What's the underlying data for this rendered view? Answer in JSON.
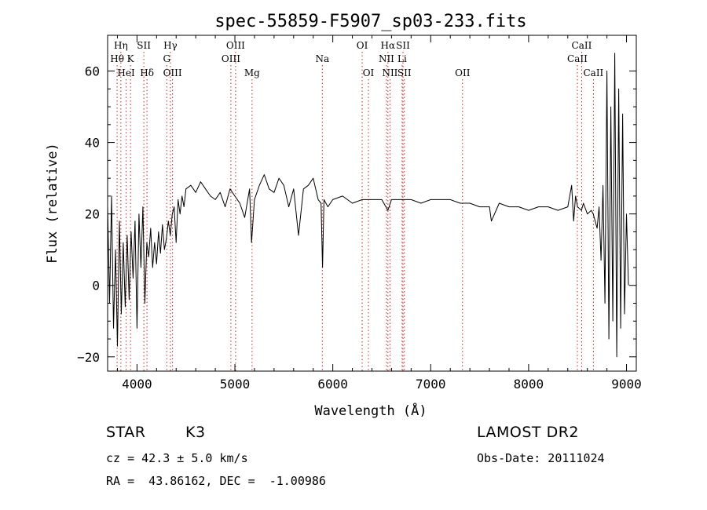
{
  "chart_data": {
    "type": "line",
    "title": "spec-55859-F5907_sp03-233.fits",
    "xlabel": "Wavelength (Å)",
    "ylabel": "Flux (relative)",
    "xlim": [
      3700,
      9100
    ],
    "ylim": [
      -24,
      70
    ],
    "x_ticks": [
      4000,
      5000,
      6000,
      7000,
      8000,
      9000
    ],
    "y_ticks": [
      -20,
      0,
      20,
      40,
      60
    ],
    "grid": false,
    "line_color": "#000000",
    "marker_color": "#cc2222",
    "series": [
      {
        "x": [
          3700,
          3720,
          3740,
          3760,
          3780,
          3800,
          3820,
          3840,
          3860,
          3880,
          3900,
          3920,
          3940,
          3960,
          3980,
          4000,
          4020,
          4040,
          4060,
          4080,
          4100,
          4120,
          4140,
          4160,
          4180,
          4200,
          4220,
          4240,
          4260,
          4280,
          4300,
          4320,
          4340,
          4360,
          4380,
          4400,
          4420,
          4440,
          4460,
          4480,
          4500,
          4550,
          4600,
          4650,
          4700,
          4750,
          4800,
          4850,
          4900,
          4950,
          5000,
          5050,
          5100,
          5150,
          5170,
          5200,
          5250,
          5300,
          5350,
          5400,
          5450,
          5500,
          5550,
          5600,
          5650,
          5700,
          5750,
          5800,
          5850,
          5880,
          5895,
          5910,
          5950,
          6000,
          6100,
          6200,
          6300,
          6400,
          6500,
          6563,
          6600,
          6700,
          6800,
          6900,
          7000,
          7100,
          7200,
          7300,
          7400,
          7500,
          7600,
          7620,
          7700,
          7800,
          7900,
          8000,
          8100,
          8200,
          8300,
          8400,
          8440,
          8460,
          8480,
          8500,
          8540,
          8560,
          8600,
          8640,
          8660,
          8700,
          8720,
          8740,
          8760,
          8780,
          8800,
          8820,
          8840,
          8860,
          8880,
          8900,
          8920,
          8940,
          8960,
          8980,
          9000,
          9020
        ],
        "y": [
          22,
          -5,
          25,
          -12,
          10,
          -17,
          18,
          -8,
          12,
          -6,
          14,
          -4,
          15,
          2,
          18,
          -12,
          20,
          5,
          22,
          -5,
          12,
          8,
          16,
          5,
          12,
          6,
          15,
          9,
          17,
          10,
          13,
          18,
          14,
          20,
          22,
          12,
          24,
          20,
          25,
          22,
          27,
          28,
          26,
          29,
          27,
          25,
          24,
          26,
          22,
          27,
          25,
          23,
          19,
          27,
          12,
          24,
          28,
          31,
          27,
          26,
          30,
          28,
          22,
          27,
          14,
          27,
          28,
          30,
          24,
          23,
          5,
          24,
          22,
          24,
          25,
          23,
          24,
          24,
          24,
          21,
          24,
          24,
          24,
          23,
          24,
          24,
          24,
          23,
          23,
          22,
          22,
          18,
          23,
          22,
          22,
          21,
          22,
          22,
          21,
          22,
          28,
          18,
          25,
          22,
          21,
          23,
          20,
          21,
          20,
          16,
          22,
          7,
          28,
          -5,
          60,
          -15,
          50,
          -10,
          65,
          -20,
          55,
          -12,
          48,
          -8,
          20,
          0
        ]
      }
    ],
    "lines_top": [
      {
        "label": "Hη",
        "x": 3835
      },
      {
        "label": "SII",
        "x": 4070
      },
      {
        "label": "Hγ",
        "x": 4341
      },
      {
        "label": "OIII",
        "x": 5007
      },
      {
        "label": "OI",
        "x": 6300
      },
      {
        "label": "Hα",
        "x": 6563
      },
      {
        "label": "SII",
        "x": 6717
      },
      {
        "label": "CaII",
        "x": 8542
      }
    ],
    "lines_mid": [
      {
        "label": "Hθ",
        "x": 3797
      },
      {
        "label": "K",
        "x": 3934
      },
      {
        "label": "G",
        "x": 4304
      },
      {
        "label": "OIII",
        "x": 4959
      },
      {
        "label": "Na",
        "x": 5893
      },
      {
        "label": "NII",
        "x": 6548
      },
      {
        "label": "Li",
        "x": 6708
      },
      {
        "label": "CaII",
        "x": 8498
      }
    ],
    "lines_low": [
      {
        "label": "HeI",
        "x": 3889
      },
      {
        "label": "Hδ",
        "x": 4102
      },
      {
        "label": "OIII",
        "x": 4363
      },
      {
        "label": "Mg",
        "x": 5175
      },
      {
        "label": "OI",
        "x": 6364
      },
      {
        "label": "NII",
        "x": 6584
      },
      {
        "label": "SII",
        "x": 6731
      },
      {
        "label": "OII",
        "x": 7325
      },
      {
        "label": "CaII",
        "x": 8662
      }
    ]
  },
  "info": {
    "class": "STAR",
    "subclass": "K3",
    "survey": "LAMOST DR2",
    "cz": "cz = 42.3 ± 5.0 km/s",
    "obs_date": "Obs-Date: 20111024",
    "coords": "RA =  43.86162, DEC =  -1.00986"
  }
}
